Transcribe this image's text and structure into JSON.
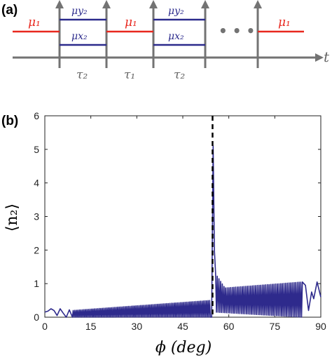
{
  "panel_a": {
    "label": "(a)",
    "mu1": "μ₁",
    "mu_y2": "μy₂",
    "mu_x2": "μx₂",
    "tau2": "τ₂",
    "tau1": "τ₁",
    "t": "t",
    "ellipsis": "• • •",
    "colors": {
      "red": "#e8281f",
      "blue": "#2b2a8c",
      "axis": "#737373"
    }
  },
  "panel_b": {
    "label": "(b)"
  },
  "chart_data": {
    "type": "line",
    "title": "",
    "xlabel": "ϕ (deg)",
    "ylabel": "⟨n₂⟩",
    "xlim": [
      0,
      90
    ],
    "ylim": [
      0,
      6
    ],
    "xticks": [
      0,
      15,
      30,
      45,
      60,
      75,
      90
    ],
    "yticks": [
      0,
      1,
      2,
      3,
      4,
      5,
      6
    ],
    "grid": false,
    "series_color": "#2e2a8c",
    "vline": {
      "x": 54.7,
      "style": "dashed",
      "color": "#000000"
    },
    "series": [
      {
        "x": [
          0,
          1,
          2,
          3,
          4,
          5,
          6,
          7,
          8,
          10,
          12,
          15,
          20,
          25,
          30,
          35,
          40,
          45,
          50,
          53,
          54,
          54.4,
          55,
          55.5,
          56,
          57,
          60,
          65,
          70,
          75,
          80,
          82,
          84,
          85,
          86,
          87,
          88,
          89,
          90
        ],
        "y": [
          0.15,
          0.18,
          0.25,
          0.2,
          0.05,
          0.25,
          0.12,
          0.0,
          0.22,
          0.05,
          0.22,
          0.1,
          0.15,
          0.22,
          0.28,
          0.32,
          0.38,
          0.45,
          0.5,
          0.42,
          0.3,
          0.0,
          5.1,
          1.5,
          0.9,
          0.8,
          0.82,
          0.85,
          0.88,
          0.93,
          0.98,
          1.02,
          0.25,
          0.95,
          0.2,
          0.75,
          0.55,
          1.05,
          0.6
        ],
        "oscillation_band": [
          {
            "from": 9,
            "to": 54,
            "lower": [
              0.0,
              0.0
            ],
            "upper": [
              0.2,
              0.5
            ]
          },
          {
            "from": 55.7,
            "to": 84,
            "lower": [
              0.15,
              0.0
            ],
            "upper": [
              1.3,
              1.05
            ]
          }
        ]
      }
    ]
  }
}
